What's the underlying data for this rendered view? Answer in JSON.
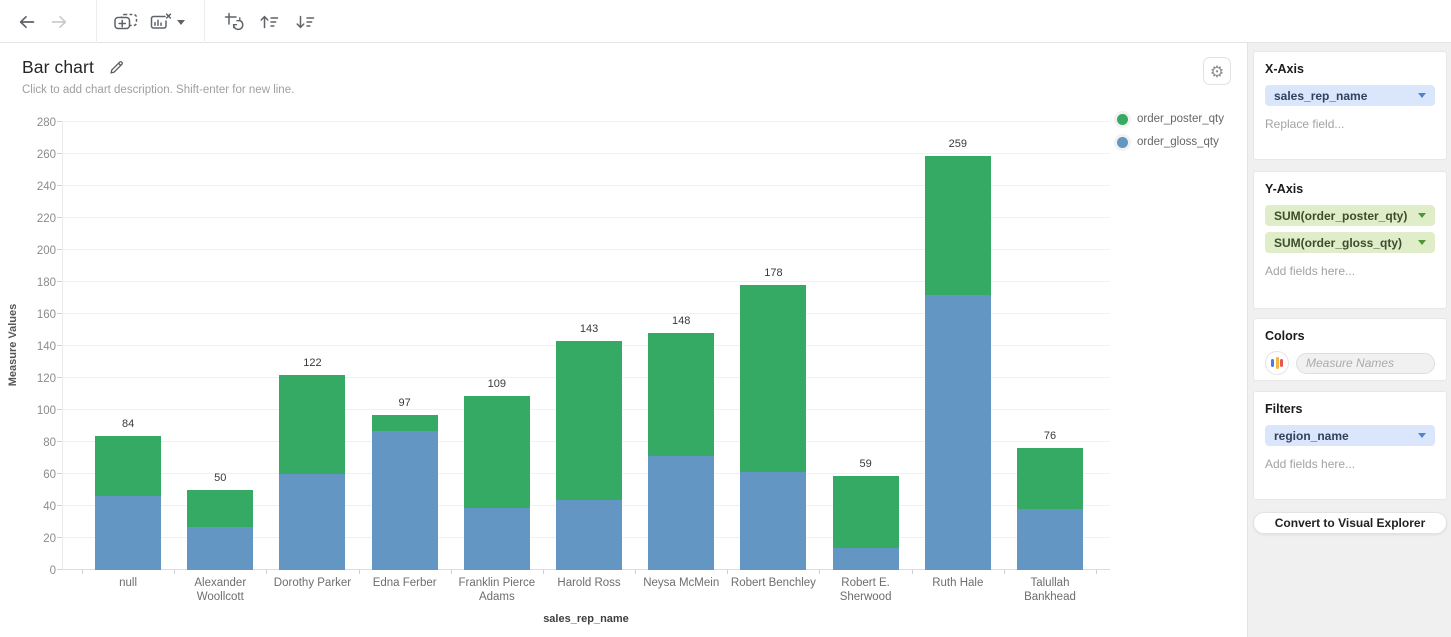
{
  "toolbar": {
    "icons": [
      "back-arrow",
      "forward-arrow",
      "duplicate-chart",
      "delete-chart",
      "delete-chart-caret",
      "swap-axes",
      "sort-ascending",
      "sort-descending"
    ]
  },
  "header": {
    "title": "Bar chart",
    "edit_icon": "pencil",
    "description_placeholder": "Click to add chart description. Shift-enter for new line.",
    "settings_icon": "gear"
  },
  "legend": [
    {
      "label": "order_poster_qty",
      "color": "#35aa64"
    },
    {
      "label": "order_gloss_qty",
      "color": "#6396c2"
    }
  ],
  "chart_data": {
    "type": "bar",
    "stacked": true,
    "categories": [
      "null",
      "Alexander Woollcott",
      "Dorothy Parker",
      "Edna Ferber",
      "Franklin Pierce Adams",
      "Harold Ross",
      "Neysa McMein",
      "Robert Benchley",
      "Robert E. Sherwood",
      "Ruth Hale",
      "Talullah Bankhead"
    ],
    "series": [
      {
        "name": "order_poster_qty",
        "color": "#35aa64",
        "values": [
          38,
          23,
          62,
          10,
          70,
          99,
          77,
          117,
          45,
          87,
          38
        ]
      },
      {
        "name": "order_gloss_qty",
        "color": "#6396c2",
        "values": [
          46,
          27,
          60,
          87,
          39,
          44,
          71,
          61,
          14,
          172,
          38
        ]
      }
    ],
    "totals": [
      84,
      50,
      122,
      97,
      109,
      143,
      148,
      178,
      59,
      259,
      76
    ],
    "xlabel": "sales_rep_name",
    "ylabel": "Measure Values",
    "ylim": [
      0,
      280
    ],
    "ytick_step": 20,
    "grid": true,
    "legend_position": "top-right"
  },
  "sidebar": {
    "x_axis": {
      "title": "X-Axis",
      "fields": [
        {
          "label": "sales_rep_name"
        }
      ],
      "placeholder": "Replace field..."
    },
    "y_axis": {
      "title": "Y-Axis",
      "fields": [
        {
          "label": "SUM(order_poster_qty)"
        },
        {
          "label": "SUM(order_gloss_qty)"
        }
      ],
      "placeholder": "Add fields here..."
    },
    "colors": {
      "title": "Colors",
      "palette_icon": "mini-bar-palette",
      "field_placeholder": "Measure Names",
      "palette_colors": [
        "#4b7be5",
        "#f4b63f",
        "#e8564f"
      ]
    },
    "filters": {
      "title": "Filters",
      "fields": [
        {
          "label": "region_name"
        }
      ],
      "placeholder": "Add fields here..."
    },
    "convert_button": "Convert to Visual Explorer"
  }
}
